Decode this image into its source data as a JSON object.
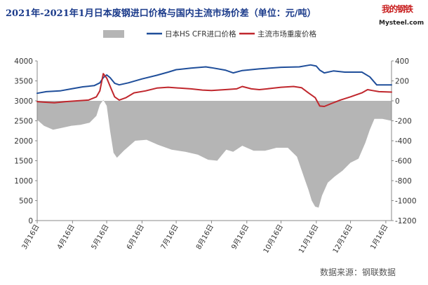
{
  "title": "2021年-2021年1月日本废钢进口价格与国内主流市场价差（单位：元/吨）",
  "logo": {
    "cn": "我的钢铁",
    "en": "Mysteel.com"
  },
  "source": "数据来源：钢联数据",
  "chart_data": {
    "type": "line",
    "legend": {
      "placement": "top",
      "items": [
        {
          "name": "",
          "color": "#b5b5b5",
          "kind": "area"
        },
        {
          "name": "日本HS CFR进口价格",
          "color": "#1f4e9a",
          "kind": "line"
        },
        {
          "name": "主流市场重废价格",
          "color": "#c0272d",
          "kind": "line"
        }
      ]
    },
    "x_ticks": [
      "3月16日",
      "4月16日",
      "5月16日",
      "6月16日",
      "7月16日",
      "8月16日",
      "9月16日",
      "10月16日",
      "11月16日",
      "12月16日",
      "1月16日"
    ],
    "x_tick_positions": [
      0,
      31,
      61,
      92,
      122,
      153,
      184,
      214,
      245,
      275,
      306
    ],
    "y_left": {
      "ticks": [
        0,
        500,
        1000,
        1500,
        2000,
        2500,
        3000,
        3500,
        4000
      ],
      "ylim": [
        0,
        4000
      ]
    },
    "y_right": {
      "ticks": [
        -1200,
        -1000,
        -800,
        -600,
        -400,
        -200,
        0,
        200,
        400
      ],
      "ylim": [
        -1200,
        400
      ]
    },
    "x_range": [
      0,
      311
    ],
    "series": [
      {
        "name": "日本HS CFR进口价格",
        "axis": "left",
        "color": "#1f4e9a",
        "points": [
          [
            0,
            3190
          ],
          [
            8,
            3230
          ],
          [
            20,
            3250
          ],
          [
            30,
            3300
          ],
          [
            40,
            3350
          ],
          [
            50,
            3380
          ],
          [
            55,
            3450
          ],
          [
            58,
            3580
          ],
          [
            61,
            3650
          ],
          [
            64,
            3580
          ],
          [
            68,
            3440
          ],
          [
            72,
            3400
          ],
          [
            80,
            3450
          ],
          [
            92,
            3550
          ],
          [
            105,
            3640
          ],
          [
            115,
            3720
          ],
          [
            122,
            3780
          ],
          [
            135,
            3820
          ],
          [
            148,
            3850
          ],
          [
            153,
            3830
          ],
          [
            165,
            3770
          ],
          [
            172,
            3700
          ],
          [
            180,
            3760
          ],
          [
            195,
            3800
          ],
          [
            214,
            3840
          ],
          [
            230,
            3850
          ],
          [
            240,
            3900
          ],
          [
            245,
            3870
          ],
          [
            248,
            3770
          ],
          [
            252,
            3700
          ],
          [
            260,
            3750
          ],
          [
            270,
            3720
          ],
          [
            285,
            3720
          ],
          [
            292,
            3600
          ],
          [
            298,
            3400
          ],
          [
            311,
            3400
          ]
        ]
      },
      {
        "name": "主流市场重废价格",
        "axis": "left",
        "color": "#c0272d",
        "points": [
          [
            0,
            2980
          ],
          [
            5,
            2970
          ],
          [
            15,
            2950
          ],
          [
            25,
            2980
          ],
          [
            35,
            3000
          ],
          [
            45,
            3020
          ],
          [
            52,
            3100
          ],
          [
            55,
            3250
          ],
          [
            58,
            3680
          ],
          [
            61,
            3570
          ],
          [
            65,
            3300
          ],
          [
            68,
            3100
          ],
          [
            72,
            3020
          ],
          [
            78,
            3080
          ],
          [
            85,
            3200
          ],
          [
            95,
            3250
          ],
          [
            105,
            3320
          ],
          [
            115,
            3340
          ],
          [
            125,
            3320
          ],
          [
            135,
            3300
          ],
          [
            145,
            3270
          ],
          [
            153,
            3260
          ],
          [
            165,
            3280
          ],
          [
            175,
            3300
          ],
          [
            180,
            3360
          ],
          [
            188,
            3300
          ],
          [
            195,
            3280
          ],
          [
            205,
            3310
          ],
          [
            214,
            3340
          ],
          [
            225,
            3360
          ],
          [
            232,
            3330
          ],
          [
            238,
            3200
          ],
          [
            244,
            3080
          ],
          [
            248,
            2870
          ],
          [
            252,
            2860
          ],
          [
            258,
            2930
          ],
          [
            266,
            3020
          ],
          [
            275,
            3100
          ],
          [
            285,
            3200
          ],
          [
            290,
            3280
          ],
          [
            294,
            3260
          ],
          [
            300,
            3230
          ],
          [
            311,
            3220
          ]
        ]
      },
      {
        "name": "",
        "axis": "right",
        "kind": "area",
        "color": "#b5b5b5",
        "points": [
          [
            0,
            -190
          ],
          [
            6,
            -250
          ],
          [
            14,
            -290
          ],
          [
            22,
            -270
          ],
          [
            30,
            -250
          ],
          [
            38,
            -240
          ],
          [
            46,
            -220
          ],
          [
            52,
            -150
          ],
          [
            55,
            -40
          ],
          [
            58,
            10
          ],
          [
            61,
            -50
          ],
          [
            64,
            -300
          ],
          [
            67,
            -520
          ],
          [
            70,
            -570
          ],
          [
            76,
            -500
          ],
          [
            86,
            -400
          ],
          [
            96,
            -390
          ],
          [
            106,
            -440
          ],
          [
            118,
            -490
          ],
          [
            130,
            -510
          ],
          [
            141,
            -540
          ],
          [
            150,
            -590
          ],
          [
            158,
            -600
          ],
          [
            166,
            -490
          ],
          [
            172,
            -510
          ],
          [
            180,
            -450
          ],
          [
            190,
            -500
          ],
          [
            200,
            -500
          ],
          [
            210,
            -470
          ],
          [
            220,
            -470
          ],
          [
            228,
            -560
          ],
          [
            234,
            -760
          ],
          [
            238,
            -890
          ],
          [
            241,
            -1000
          ],
          [
            244,
            -1060
          ],
          [
            247,
            -1070
          ],
          [
            250,
            -950
          ],
          [
            255,
            -820
          ],
          [
            261,
            -760
          ],
          [
            268,
            -700
          ],
          [
            275,
            -620
          ],
          [
            282,
            -580
          ],
          [
            288,
            -420
          ],
          [
            292,
            -290
          ],
          [
            296,
            -180
          ],
          [
            303,
            -180
          ],
          [
            311,
            -200
          ]
        ]
      }
    ]
  }
}
